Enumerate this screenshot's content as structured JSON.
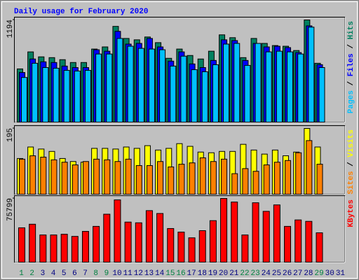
{
  "chart_data": [
    {
      "type": "bar",
      "title": "Daily usage for February 2020",
      "ylim": [
        0,
        1194
      ],
      "yticks": [
        1194
      ],
      "legend_separator": " / ",
      "series": [
        {
          "name": "Hits",
          "color": "#008060",
          "values": [
            622,
            821,
            763,
            754,
            730,
            697,
            697,
            854,
            879,
            1119,
            978,
            962,
            995,
            929,
            746,
            854,
            779,
            738,
            829,
            1020,
            987,
            754,
            978,
            920,
            895,
            887,
            837,
            1194,
            688,
            null,
            null
          ]
        },
        {
          "name": "Files",
          "color": "#0000ff",
          "values": [
            580,
            738,
            705,
            697,
            655,
            638,
            638,
            846,
            829,
            1061,
            912,
            920,
            978,
            879,
            713,
            821,
            680,
            638,
            721,
            962,
            953,
            721,
            920,
            879,
            887,
            871,
            813,
            1125,
            672,
            null,
            null
          ]
        },
        {
          "name": "Pages",
          "color": "#00c0ff",
          "values": [
            522,
            688,
            638,
            630,
            605,
            597,
            605,
            796,
            796,
            978,
            887,
            862,
            854,
            846,
            655,
            771,
            613,
            589,
            671,
            912,
            920,
            663,
            920,
            821,
            829,
            821,
            796,
            1110,
            638,
            null,
            null
          ]
        }
      ]
    },
    {
      "type": "bar",
      "ylim": [
        0,
        195
      ],
      "yticks": [
        195
      ],
      "legend_separator": " / ",
      "series": [
        {
          "name": "Visits",
          "color": "#ffff00",
          "values": [
            106,
            140,
            134,
            127,
            106,
            97,
            95,
            136,
            136,
            134,
            140,
            136,
            144,
            131,
            136,
            150,
            142,
            125,
            123,
            127,
            127,
            148,
            131,
            119,
            131,
            114,
            125,
            195,
            140,
            null,
            null
          ]
        },
        {
          "name": "Sites",
          "color": "#ff8000",
          "values": [
            104,
            114,
            110,
            102,
            95,
            87,
            97,
            104,
            102,
            97,
            104,
            85,
            85,
            97,
            81,
            89,
            93,
            108,
            97,
            104,
            61,
            76,
            68,
            87,
            95,
            100,
            123,
            159,
            89,
            null,
            null
          ]
        }
      ]
    },
    {
      "type": "bar",
      "ylim": [
        0,
        75799
      ],
      "yticks": [
        75799
      ],
      "categories": [
        "1",
        "2",
        "3",
        "4",
        "5",
        "6",
        "7",
        "8",
        "9",
        "10",
        "11",
        "12",
        "13",
        "14",
        "15",
        "16",
        "17",
        "18",
        "19",
        "20",
        "21",
        "22",
        "23",
        "24",
        "25",
        "26",
        "27",
        "28",
        "29",
        "30",
        "31"
      ],
      "category_colors": [
        "#008040",
        "#008040",
        "#000080",
        "#000080",
        "#000080",
        "#000080",
        "#000080",
        "#008040",
        "#008040",
        "#000080",
        "#000080",
        "#000080",
        "#000080",
        "#000080",
        "#008040",
        "#008040",
        "#000080",
        "#000080",
        "#000080",
        "#000080",
        "#000080",
        "#008040",
        "#008040",
        "#000080",
        "#000080",
        "#000080",
        "#000080",
        "#000080",
        "#008040",
        "#000080",
        "#000080"
      ],
      "series": [
        {
          "name": "KBytes",
          "color": "#ff0000",
          "values": [
            40880,
            45140,
            32360,
            32360,
            33210,
            30660,
            36620,
            42580,
            57060,
            74090,
            47690,
            46840,
            61320,
            57910,
            40030,
            35770,
            28960,
            37470,
            49400,
            75799,
            71540,
            32360,
            70690,
            60470,
            68130,
            42580,
            50250,
            48550,
            34920,
            null,
            null
          ]
        }
      ]
    }
  ]
}
